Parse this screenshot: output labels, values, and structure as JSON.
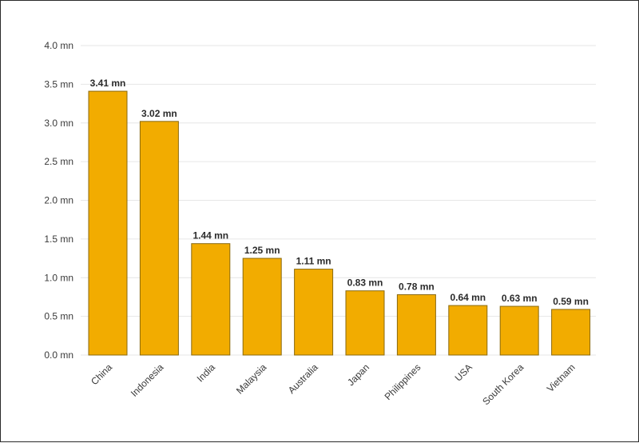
{
  "chart_data": {
    "type": "bar",
    "title": "",
    "xlabel": "",
    "ylabel": "",
    "categories": [
      "China",
      "Indonesia",
      "India",
      "Malaysia",
      "Australia",
      "Japan",
      "Philippines",
      "USA",
      "South Korea",
      "Vietnam"
    ],
    "values": [
      3.41,
      3.02,
      1.44,
      1.25,
      1.11,
      0.83,
      0.78,
      0.64,
      0.63,
      0.59
    ],
    "data_labels": [
      "3.41 mn",
      "3.02 mn",
      "1.44 mn",
      "1.25 mn",
      "1.11 mn",
      "0.83 mn",
      "0.78 mn",
      "0.64 mn",
      "0.63 mn",
      "0.59 mn"
    ],
    "ylim": [
      0,
      4.0
    ],
    "y_ticks": [
      0.0,
      0.5,
      1.0,
      1.5,
      2.0,
      2.5,
      3.0,
      3.5,
      4.0
    ],
    "y_tick_labels": [
      "0.0 mn",
      "0.5 mn",
      "1.0 mn",
      "1.5 mn",
      "2.0 mn",
      "2.5 mn",
      "3.0 mn",
      "3.5 mn",
      "4.0 mn"
    ],
    "grid": true,
    "legend": "none",
    "bar_color": "#f2ac00"
  }
}
